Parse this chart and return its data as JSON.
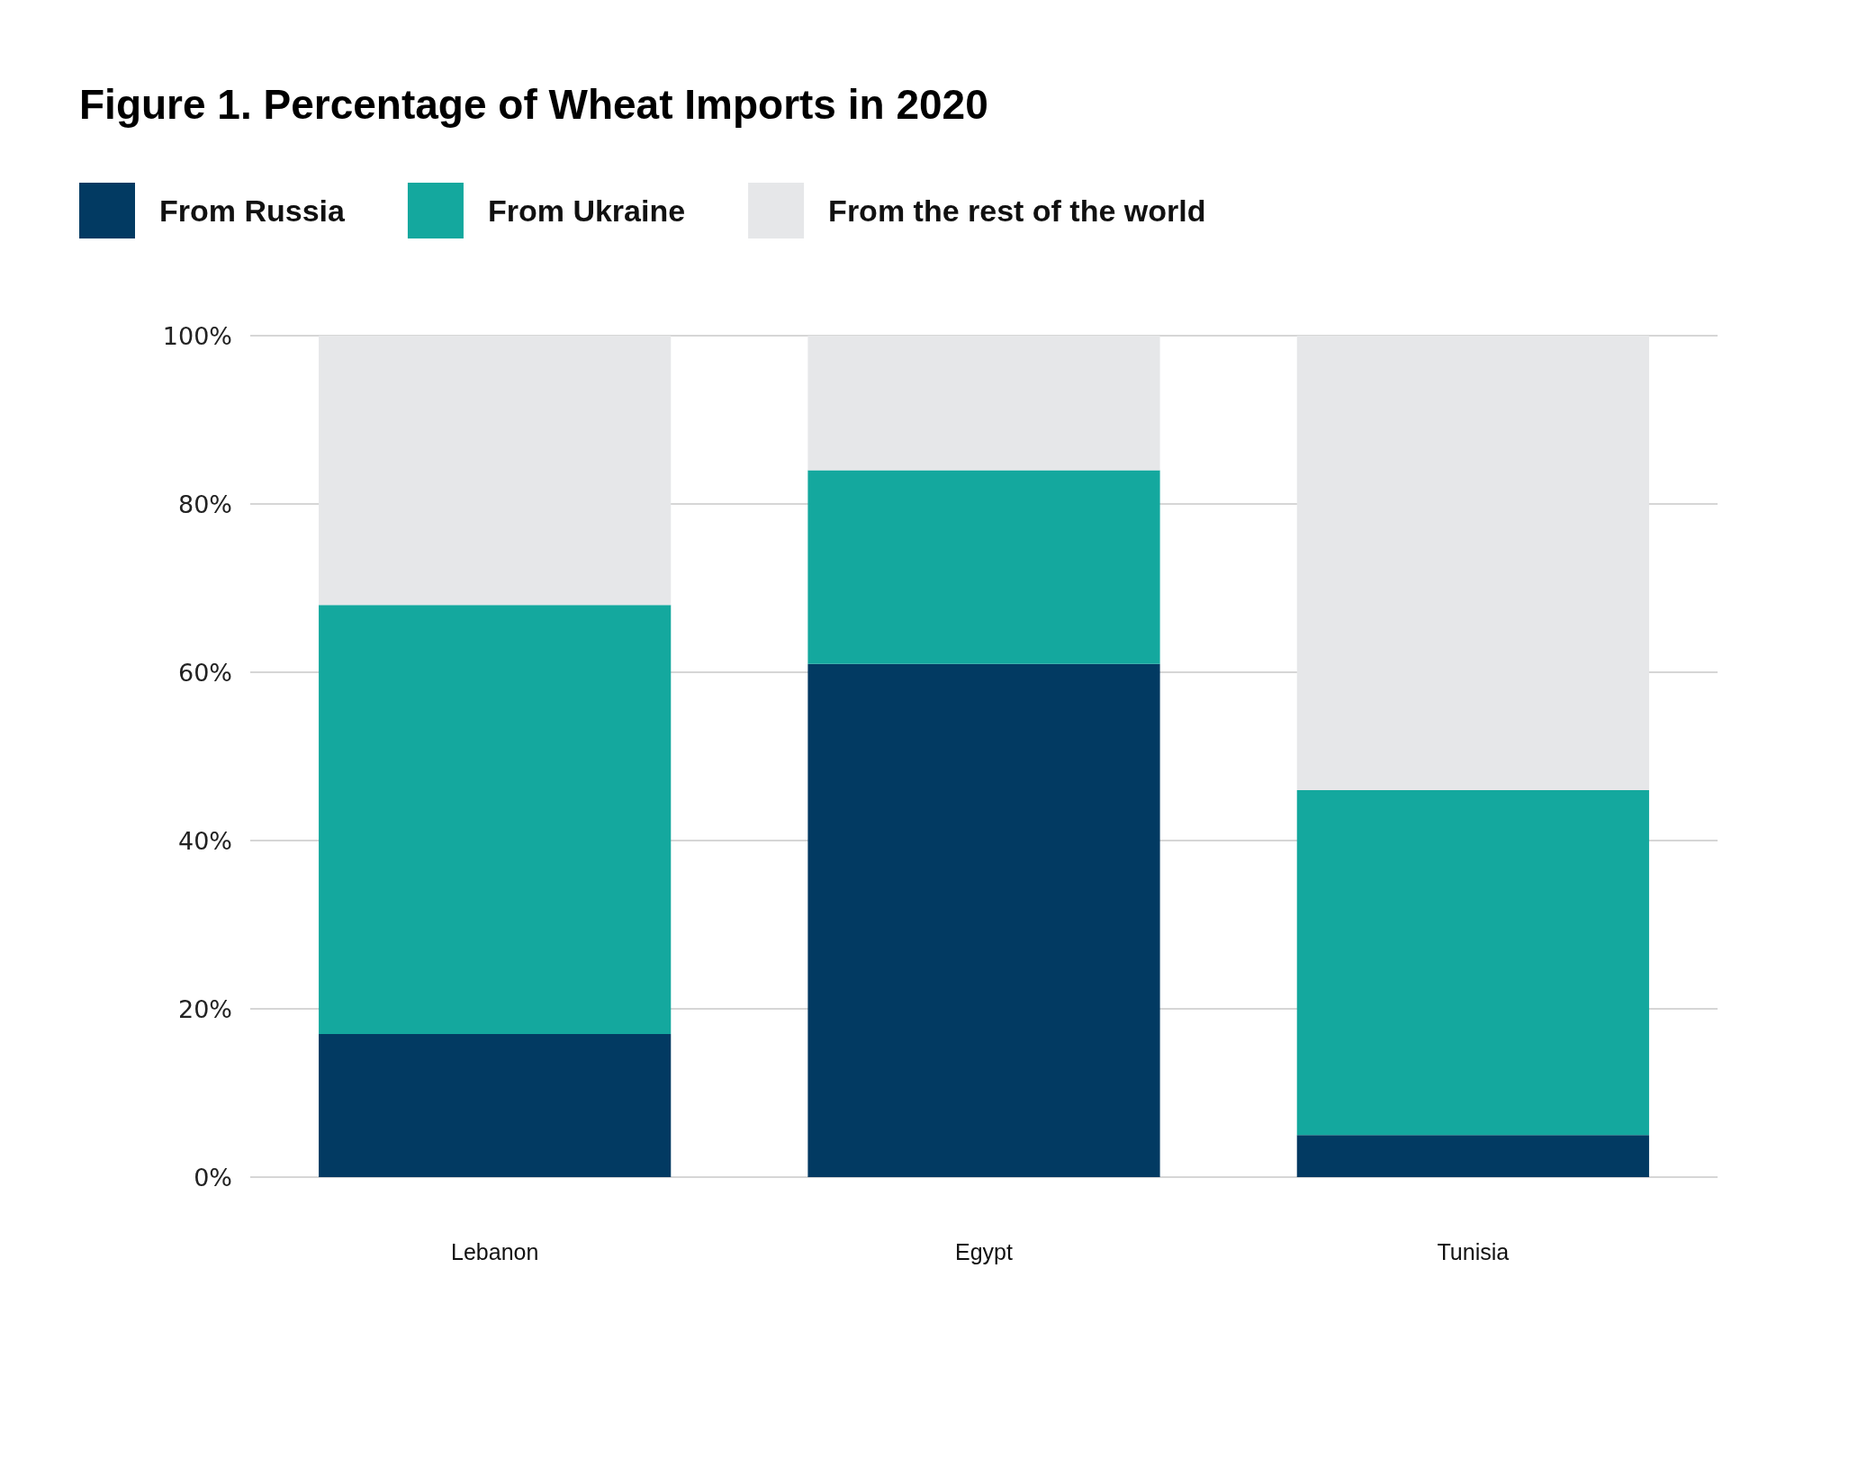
{
  "chart_data": {
    "type": "bar",
    "title": "Figure 1. Percentage of Wheat Imports in 2020",
    "categories": [
      "Lebanon",
      "Egypt",
      "Tunisia"
    ],
    "stacked": true,
    "series": [
      {
        "name": "From Russia",
        "color": "#023a62",
        "values": [
          17,
          61,
          5
        ]
      },
      {
        "name": "From Ukraine",
        "color": "#14a89e",
        "values": [
          51,
          23,
          41
        ]
      },
      {
        "name": "From the rest of the world",
        "color": "#e6e7e9",
        "values": [
          32,
          16,
          54
        ]
      }
    ],
    "ylim": [
      0,
      100
    ],
    "yticks": [
      {
        "value": 0,
        "label": "0%"
      },
      {
        "value": 20,
        "label": "20%"
      },
      {
        "value": 40,
        "label": "40%"
      },
      {
        "value": 60,
        "label": "60%"
      },
      {
        "value": 80,
        "label": "80%"
      },
      {
        "value": 100,
        "label": "100%"
      }
    ],
    "grid": "y",
    "legend": "top left"
  }
}
